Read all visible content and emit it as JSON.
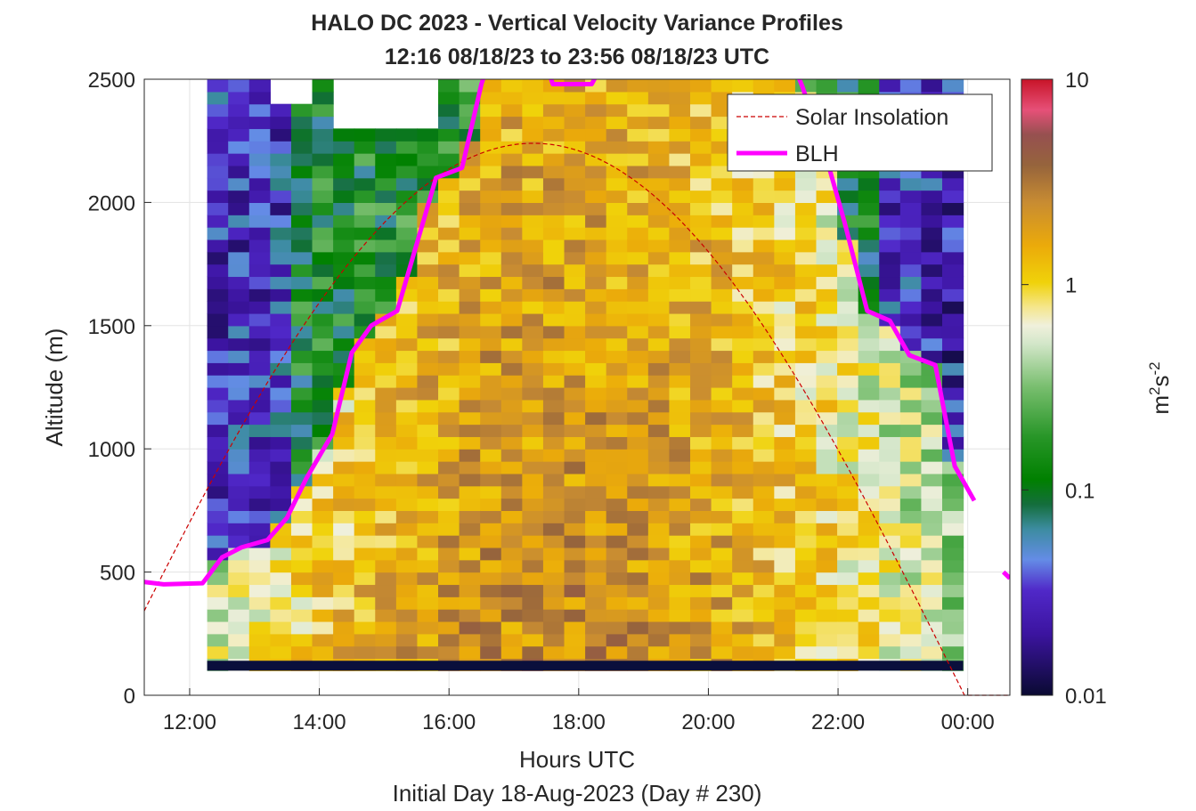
{
  "chart_data": {
    "type": "heatmap",
    "title": "HALO DC 2023 - Vertical Velocity Variance Profiles",
    "subtitle": "12:16 08/18/23 to 23:56 08/18/23  UTC",
    "xlabel": "Hours UTC",
    "xlabel2": "Initial Day 18-Aug-2023 (Day # 230)",
    "ylabel": "Altitude (m)",
    "xlim": [
      11.3,
      24.65
    ],
    "ylim": [
      0,
      2500
    ],
    "x_ticks": [
      12,
      14,
      16,
      18,
      20,
      22,
      24
    ],
    "x_tick_labels": [
      "12:00",
      "14:00",
      "16:00",
      "18:00",
      "20:00",
      "22:00",
      "00:00"
    ],
    "y_ticks": [
      0,
      500,
      1000,
      1500,
      2000,
      2500
    ],
    "y_tick_labels": [
      "0",
      "500",
      "1000",
      "1500",
      "2000",
      "2500"
    ],
    "grid": true,
    "legend_position": "top-right",
    "legend": [
      "Solar Insolation",
      "BLH"
    ],
    "colorbar": {
      "scale": "log",
      "range": [
        0.01,
        10
      ],
      "ticks": [
        0.01,
        0.1,
        1,
        10
      ],
      "tick_labels": [
        "0.01",
        "0.1",
        "1",
        "10"
      ],
      "label_base": "m",
      "label_sup1": "2",
      "label_mid": "s",
      "label_sup2": "-2"
    },
    "heatmap": {
      "time_start": 12.27,
      "time_end": 23.93,
      "n_columns": 36,
      "altitude_bottom": 100,
      "altitude_top": 2500,
      "altitude_step": 50,
      "value_units": "m^2 s^-2",
      "approx_variance_by_period": [
        {
          "period": "12:16-13:30",
          "below_BLH": 0.8,
          "above_BLH": 0.03
        },
        {
          "period": "13:30-16:00",
          "below_BLH": 1.2,
          "above_BLH": 0.1
        },
        {
          "period": "16:00-20:00",
          "below_BLH": 2.0,
          "above_BLH": 0.5
        },
        {
          "period": "20:00-22:30",
          "below_BLH": 1.0,
          "above_BLH": 0.12
        },
        {
          "period": "22:30-23:56",
          "below_BLH": 0.5,
          "above_BLH": 0.03
        }
      ]
    },
    "series": [
      {
        "name": "BLH",
        "color": "#ff00ff",
        "x": [
          11.3,
          11.6,
          12.2,
          12.5,
          12.8,
          13.2,
          13.5,
          13.8,
          14.2,
          14.5,
          14.8,
          15.2,
          15.5,
          15.8,
          16.2,
          16.5,
          16.65,
          17.45,
          17.6,
          18.2,
          18.45
        ],
        "y": [
          460,
          450,
          455,
          560,
          600,
          630,
          720,
          880,
          1060,
          1390,
          1500,
          1560,
          1830,
          2100,
          2140,
          2480,
          2600,
          2600,
          2480,
          2480,
          2600
        ]
      },
      {
        "name": "BLH",
        "color": "#ff00ff",
        "x": [
          21.25,
          21.45,
          21.8,
          22.1,
          22.45,
          22.8,
          23.1,
          23.5,
          23.8,
          24.1
        ],
        "y": [
          2600,
          2470,
          2200,
          1920,
          1560,
          1520,
          1380,
          1340,
          930,
          790
        ]
      },
      {
        "name": "BLH",
        "color": "#ff00ff",
        "x": [
          24.55,
          24.65
        ],
        "y": [
          500,
          475
        ]
      },
      {
        "name": "Solar Insolation",
        "color": "#cc0000",
        "style": "dashed",
        "peak_time": 17.3,
        "peak_value": 2240,
        "zero_time": 23.95
      }
    ]
  }
}
